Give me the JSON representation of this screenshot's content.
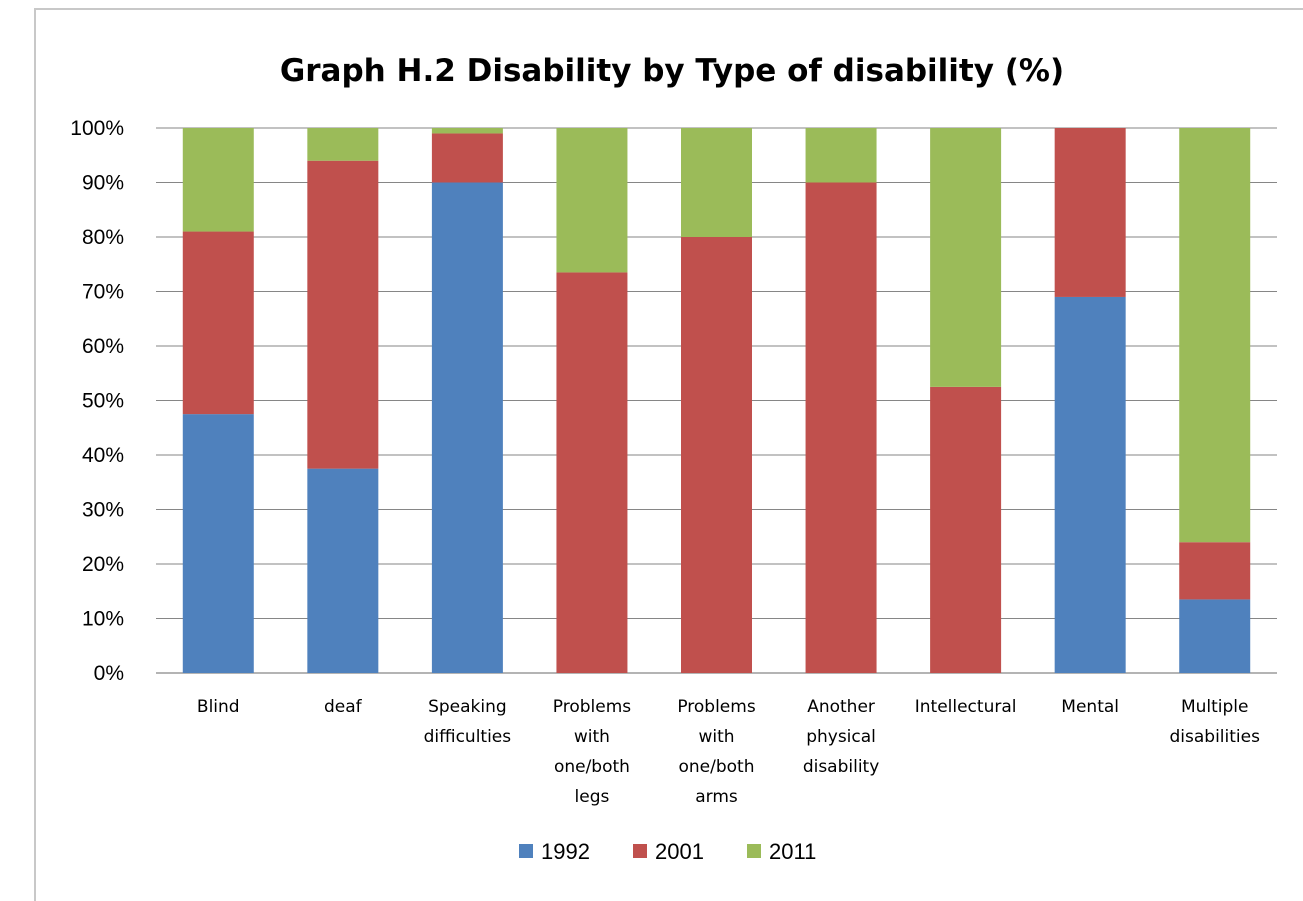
{
  "chart_data": {
    "type": "bar",
    "stacked": true,
    "title": "Graph H.2 Disability by Type of disability (%)",
    "xlabel": "",
    "ylabel": "",
    "ylim": [
      0,
      100
    ],
    "y_ticks": [
      "0%",
      "10%",
      "20%",
      "30%",
      "40%",
      "50%",
      "60%",
      "70%",
      "80%",
      "90%",
      "100%"
    ],
    "y_tick_values": [
      0,
      10,
      20,
      30,
      40,
      50,
      60,
      70,
      80,
      90,
      100
    ],
    "grid": true,
    "legend_position": "bottom",
    "categories": [
      [
        "Blind"
      ],
      [
        "deaf"
      ],
      [
        "Speaking",
        "difficulties"
      ],
      [
        "Problems",
        "with",
        "one/both",
        "legs"
      ],
      [
        "Problems",
        "with",
        "one/both",
        "arms"
      ],
      [
        "Another",
        "physical",
        "disability"
      ],
      [
        "Intellectural"
      ],
      [
        "Mental"
      ],
      [
        "Multiple",
        "disabilities"
      ]
    ],
    "series": [
      {
        "name": "1992",
        "color": "#4f81bd",
        "values": [
          47.5,
          37.5,
          90,
          0,
          0,
          0,
          0,
          69,
          13.5
        ]
      },
      {
        "name": "2001",
        "color": "#c0504d",
        "values": [
          33.5,
          56.5,
          9,
          73.5,
          80,
          90,
          52.5,
          31,
          10.5
        ]
      },
      {
        "name": "2011",
        "color": "#9bbb59",
        "values": [
          19,
          6,
          1,
          26.5,
          20,
          10,
          47.5,
          0,
          76
        ]
      }
    ]
  }
}
